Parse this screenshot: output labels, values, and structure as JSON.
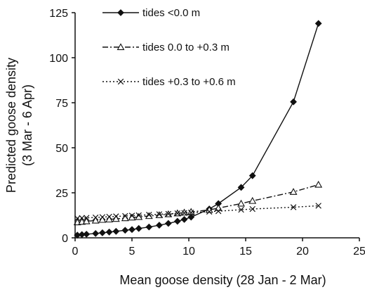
{
  "chart_data": {
    "type": "line",
    "xlabel": "Mean goose density (28 Jan - 2 Mar)",
    "ylabel_lines": [
      "Predicted goose density",
      "(3 Mar - 6 Apr)"
    ],
    "xlim": [
      0,
      25
    ],
    "ylim": [
      0,
      125
    ],
    "xticks": [
      0,
      5,
      10,
      15,
      20,
      25
    ],
    "yticks": [
      0,
      25,
      50,
      75,
      100,
      125
    ],
    "grid": false,
    "legend_position": "top-left",
    "series": [
      {
        "name": "tides <0.0 m",
        "marker": "diamond",
        "line": "solid",
        "x": [
          0.2,
          0.6,
          1.0,
          1.8,
          2.4,
          3.0,
          3.6,
          4.4,
          5.0,
          5.6,
          6.5,
          7.4,
          8.2,
          9.0,
          9.6,
          10.2,
          11.8,
          12.6,
          14.6,
          15.6,
          19.2,
          21.4
        ],
        "y": [
          1.5,
          1.8,
          2.0,
          2.4,
          2.8,
          3.2,
          3.6,
          4.2,
          4.6,
          5.2,
          6.0,
          7.0,
          8.0,
          9.2,
          10.2,
          11.5,
          16.0,
          19.0,
          28.0,
          34.5,
          75.5,
          119.0
        ]
      },
      {
        "name": "tides 0.0 to +0.3 m",
        "marker": "triangle",
        "line": "dash-dot",
        "x": [
          0.2,
          0.6,
          1.0,
          1.8,
          2.4,
          3.0,
          3.6,
          4.4,
          5.0,
          5.6,
          6.5,
          7.4,
          8.2,
          9.0,
          9.6,
          10.2,
          11.8,
          12.6,
          14.6,
          15.6,
          19.2,
          21.4
        ],
        "y": [
          8.6,
          8.9,
          9.2,
          9.6,
          10.0,
          10.2,
          10.5,
          10.9,
          11.3,
          11.6,
          12.1,
          12.6,
          13.1,
          13.6,
          14.0,
          14.4,
          15.5,
          16.5,
          19.0,
          20.5,
          25.5,
          29.5
        ]
      },
      {
        "name": "tides +0.3 to +0.6 m",
        "marker": "x",
        "line": "dotted",
        "x": [
          0.2,
          0.6,
          1.0,
          1.8,
          2.4,
          3.0,
          3.6,
          4.4,
          5.0,
          5.6,
          6.5,
          7.4,
          8.2,
          9.0,
          9.6,
          10.2,
          11.8,
          12.6,
          14.6,
          15.6,
          19.2,
          21.4
        ],
        "y": [
          10.8,
          11.0,
          11.1,
          11.3,
          11.5,
          11.7,
          11.9,
          12.1,
          12.3,
          12.5,
          12.8,
          13.1,
          13.3,
          13.6,
          13.8,
          14.0,
          14.5,
          14.8,
          15.6,
          16.0,
          17.0,
          17.8
        ]
      }
    ]
  }
}
